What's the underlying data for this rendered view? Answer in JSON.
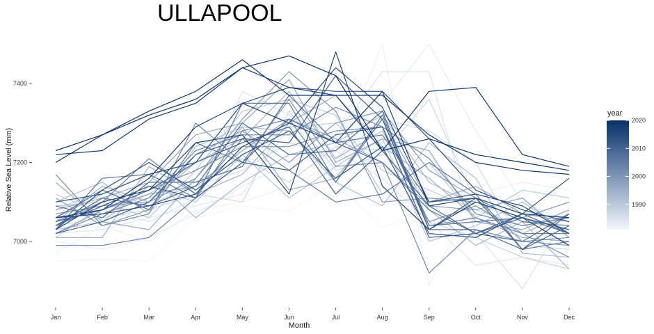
{
  "title": "ULLAPOOL",
  "chart_data": {
    "type": "line",
    "title": "ULLAPOOL",
    "xlabel": "Month",
    "ylabel": "Relative Sea Level (mm)",
    "categories": [
      "Jan",
      "Feb",
      "Mar",
      "Apr",
      "May",
      "Jun",
      "Jul",
      "Aug",
      "Sep",
      "Oct",
      "Nov",
      "Dec"
    ],
    "ylim": [
      6860,
      7510
    ],
    "yticks": [
      7000,
      7200,
      7400
    ],
    "legend": {
      "title": "year",
      "ticks": [
        1990,
        2000,
        2010,
        2020
      ],
      "range": [
        1981,
        2020
      ],
      "position": "right",
      "color_low": "#f0f6fc",
      "color_high": "#08306b"
    },
    "grid": false,
    "series": [
      {
        "year": 1981,
        "values": [
          6950,
          6955,
          6950,
          7060,
          7090,
          7075,
          7150,
          7035,
          7080,
          7070,
          7050,
          7040
        ]
      },
      {
        "year": 1982,
        "values": [
          6970,
          7040,
          7000,
          7080,
          7100,
          7140,
          7200,
          7500,
          6890,
          7120,
          7150,
          7130
        ]
      },
      {
        "year": 1983,
        "values": [
          7000,
          6980,
          7010,
          7070,
          7140,
          7200,
          7260,
          7350,
          7500,
          7280,
          7100,
          7050
        ]
      },
      {
        "year": 1984,
        "values": [
          7020,
          7030,
          7060,
          7090,
          7120,
          7290,
          7230,
          7160,
          7050,
          6940,
          6960,
          6940
        ]
      },
      {
        "year": 1985,
        "values": [
          7060,
          7080,
          7050,
          7110,
          7380,
          7320,
          7270,
          7430,
          7430,
          7020,
          6880,
          7080
        ]
      },
      {
        "year": 1986,
        "values": [
          7010,
          7090,
          7110,
          7140,
          7180,
          7250,
          7210,
          7310,
          7280,
          7200,
          6990,
          6980
        ]
      },
      {
        "year": 1987,
        "values": [
          7040,
          7060,
          7080,
          7120,
          7100,
          7330,
          7180,
          7220,
          7360,
          7100,
          7050,
          7030
        ]
      },
      {
        "year": 1988,
        "values": [
          7080,
          7130,
          7090,
          7150,
          7210,
          7150,
          7240,
          7230,
          7050,
          7010,
          6960,
          6930
        ]
      },
      {
        "year": 1989,
        "values": [
          7120,
          7070,
          7120,
          7200,
          7250,
          7290,
          7300,
          7180,
          7130,
          7080,
          7040,
          7060
        ]
      },
      {
        "year": 1990,
        "values": [
          7090,
          7100,
          7060,
          7180,
          7330,
          7360,
          7320,
          7120,
          7200,
          7060,
          7130,
          7110
        ]
      },
      {
        "year": 1991,
        "values": [
          7030,
          7050,
          7140,
          7100,
          7220,
          7110,
          7190,
          7260,
          7000,
          7040,
          7100,
          7020
        ]
      },
      {
        "year": 1992,
        "values": [
          7100,
          7150,
          7070,
          7240,
          7290,
          7280,
          7150,
          7090,
          7250,
          7160,
          6970,
          6960
        ]
      },
      {
        "year": 1993,
        "values": [
          7060,
          7120,
          7170,
          7060,
          7150,
          7220,
          7250,
          7320,
          7150,
          7090,
          7020,
          7070
        ]
      },
      {
        "year": 1994,
        "values": [
          7050,
          7140,
          7100,
          7200,
          7260,
          7380,
          7210,
          7280,
          7080,
          6990,
          7050,
          6930
        ]
      },
      {
        "year": 1995,
        "values": [
          7010,
          7010,
          7190,
          7120,
          7170,
          7300,
          7370,
          7240,
          7160,
          7060,
          7010,
          7000
        ]
      },
      {
        "year": 1996,
        "values": [
          7150,
          7050,
          7030,
          7160,
          7290,
          7130,
          7160,
          7310,
          7100,
          7140,
          7070,
          7050
        ]
      },
      {
        "year": 1997,
        "values": [
          7080,
          7110,
          7150,
          7270,
          7300,
          7410,
          7200,
          7260,
          7230,
          7050,
          7030,
          7080
        ]
      },
      {
        "year": 1998,
        "values": [
          7020,
          7080,
          7120,
          7140,
          7230,
          7310,
          7260,
          7200,
          7090,
          7080,
          7110,
          7010
        ]
      },
      {
        "year": 1999,
        "values": [
          7110,
          7040,
          7080,
          7220,
          7280,
          7200,
          7300,
          7330,
          7180,
          7110,
          7000,
          6990
        ]
      },
      {
        "year": 2000,
        "values": [
          7070,
          7090,
          7100,
          7160,
          7310,
          7430,
          7330,
          7100,
          7110,
          7100,
          7060,
          7100
        ]
      },
      {
        "year": 2001,
        "values": [
          7040,
          7100,
          7130,
          7180,
          7240,
          7240,
          7280,
          7290,
          7050,
          7090,
          7020,
          6960
        ]
      },
      {
        "year": 2002,
        "values": [
          7170,
          7040,
          7070,
          7300,
          7200,
          7360,
          7190,
          7200,
          6920,
          7030,
          7000,
          7010
        ]
      },
      {
        "year": 2003,
        "values": [
          7020,
          7070,
          7110,
          7230,
          7270,
          7270,
          7340,
          7290,
          7210,
          7070,
          7040,
          7060
        ]
      },
      {
        "year": 2004,
        "values": [
          6990,
          6990,
          7010,
          7110,
          7280,
          7310,
          7150,
          7310,
          7040,
          7060,
          7020,
          7020
        ]
      },
      {
        "year": 2005,
        "values": [
          7050,
          7100,
          7210,
          7120,
          7260,
          7180,
          7100,
          7120,
          7200,
          7120,
          6980,
          7000
        ]
      },
      {
        "year": 2006,
        "values": [
          7030,
          7160,
          7170,
          7110,
          7350,
          7350,
          7150,
          7320,
          7040,
          7050,
          7060,
          7020
        ]
      },
      {
        "year": 2007,
        "values": [
          7060,
          7130,
          7080,
          7250,
          7200,
          7310,
          7250,
          7270,
          7100,
          7110,
          7050,
          7040
        ]
      },
      {
        "year": 2008,
        "values": [
          7090,
          7060,
          7150,
          7150,
          7190,
          7370,
          7250,
          7200,
          7080,
          7020,
          7000,
          7070
        ]
      },
      {
        "year": 2009,
        "values": [
          7040,
          7110,
          7090,
          7140,
          7300,
          7220,
          7230,
          7330,
          7030,
          7030,
          6980,
          7040
        ]
      },
      {
        "year": 2010,
        "values": [
          7050,
          7080,
          7130,
          7200,
          7250,
          7290,
          7120,
          7230,
          7090,
          7020,
          7070,
          7020
        ]
      },
      {
        "year": 2011,
        "values": [
          7020,
          7050,
          7100,
          7220,
          7260,
          7250,
          7420,
          7310,
          7030,
          7110,
          6980,
          7070
        ]
      },
      {
        "year": 2012,
        "values": [
          7040,
          7090,
          7140,
          7110,
          7200,
          7180,
          7270,
          7290,
          7010,
          7020,
          7060,
          7030
        ]
      },
      {
        "year": 2013,
        "values": [
          7030,
          7130,
          7200,
          7130,
          7220,
          7280,
          7160,
          7240,
          7020,
          7010,
          7070,
          7160
        ]
      },
      {
        "year": 2014,
        "values": [
          7100,
          7120,
          7170,
          7200,
          7350,
          7390,
          7380,
          7380,
          7260,
          7130,
          7080,
          7050
        ]
      },
      {
        "year": 2015,
        "values": [
          7060,
          7070,
          7090,
          7120,
          7240,
          7300,
          7440,
          7340,
          7100,
          7120,
          7090,
          7020
        ]
      },
      {
        "year": 2016,
        "values": [
          7030,
          7100,
          7130,
          7250,
          7270,
          7120,
          7480,
          7140,
          7030,
          7100,
          7060,
          6990
        ]
      },
      {
        "year": 2017,
        "values": [
          7060,
          7080,
          7160,
          7290,
          7350,
          7300,
          7250,
          7380,
          7090,
          7110,
          7070,
          7060
        ]
      },
      {
        "year": 2018,
        "values": [
          7220,
          7230,
          7310,
          7350,
          7440,
          7390,
          7370,
          7370,
          7270,
          7200,
          7180,
          7170
        ]
      },
      {
        "year": 2019,
        "values": [
          7200,
          7270,
          7330,
          7380,
          7460,
          7370,
          7370,
          7230,
          7380,
          7390,
          7220,
          7190
        ]
      },
      {
        "year": 2020,
        "values": [
          7230,
          7270,
          7320,
          7360,
          7440,
          7470,
          7420,
          7230,
          7260,
          7220,
          7200,
          7180
        ]
      }
    ]
  }
}
